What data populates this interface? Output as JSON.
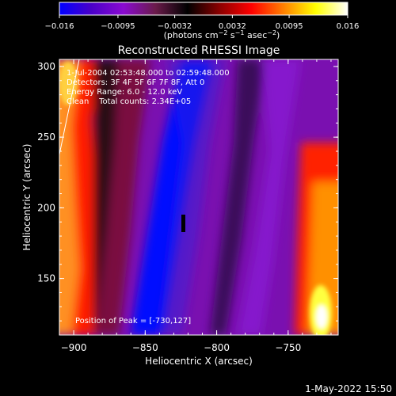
{
  "chart_data": {
    "type": "heatmap",
    "title": "Reconstructed RHESSI Image",
    "xlabel": "Heliocentric X (arcsec)",
    "ylabel": "Heliocentric Y (arcsec)",
    "xlim": [
      -910,
      -715
    ],
    "ylim": [
      110,
      305
    ],
    "x_ticks": [
      -900,
      -850,
      -800,
      -750
    ],
    "x_tick_labels": [
      "−900",
      "−850",
      "−800",
      "−750"
    ],
    "y_ticks": [
      150,
      200,
      250,
      300
    ],
    "y_tick_labels": [
      "150",
      "200",
      "250",
      "300"
    ],
    "colorbar": {
      "range": [
        -0.016,
        0.016
      ],
      "ticks": [
        -0.016,
        -0.0095,
        -0.0032,
        0.0032,
        0.0095,
        0.016
      ],
      "tick_labels": [
        "−0.016",
        "−0.0095",
        "−0.0032",
        "0.0032",
        "0.0095",
        "0.016"
      ],
      "unit_label": {
        "pre": "(photons cm",
        "sup1": "−2",
        "mid1": " s",
        "sup2": "−1",
        "mid2": " asec",
        "sup3": "−2",
        "post": ")"
      }
    },
    "annotations": [
      "1-Jul-2004 02:53:48.000 to 02:59:48.000",
      "Detectors: 3F 4F 5F 6F 7F 8F, Att 0",
      "Energy Range: 6.0 - 12.0 keV",
      "Clean    Total counts: 2.34E+05"
    ],
    "peak_text": "Position of Peak = [-730,127]",
    "peak": [
      -730,
      127
    ],
    "grid": false,
    "colors": {
      "stops": [
        "#0000ff",
        "#4a00c8",
        "#8a0ad0",
        "#6a1b4a",
        "#000000",
        "#8b0000",
        "#ff0000",
        "#ff8000",
        "#ffff00",
        "#ffffff"
      ],
      "background": "#000000",
      "text": "#ffffff"
    }
  },
  "footer": {
    "date_stamp": "1-May-2022 15:50"
  }
}
